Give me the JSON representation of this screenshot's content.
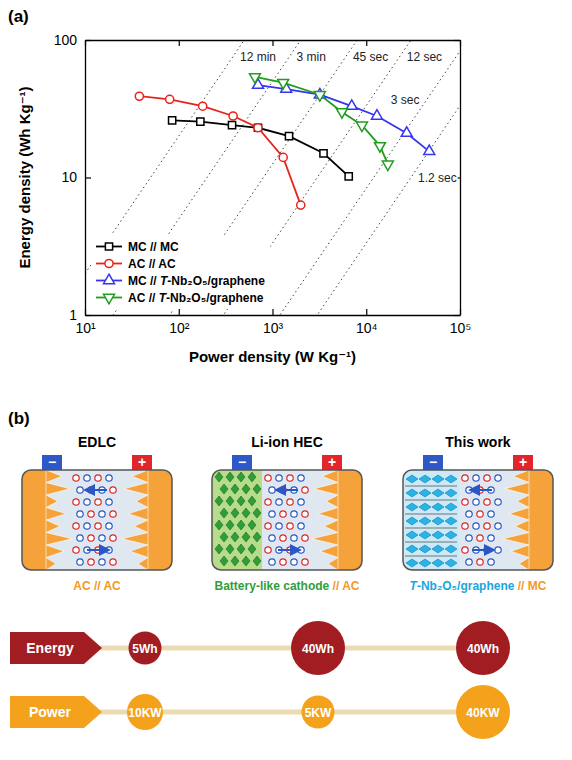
{
  "chart_data": {
    "type": "line",
    "panel_label": "(a)",
    "x_label": "Power density (W Kg⁻¹)",
    "y_label": "Energy density (Wh Kg⁻¹)",
    "log": true,
    "xlim": [
      10,
      100000
    ],
    "xticks": [
      {
        "value": 10,
        "label": "10¹"
      },
      {
        "value": 100,
        "label": "10²"
      },
      {
        "value": 1000,
        "label": "10³"
      },
      {
        "value": 10000,
        "label": "10⁴"
      },
      {
        "value": 100000,
        "label": "10⁵"
      }
    ],
    "ylim": [
      1,
      100
    ],
    "yticks": [
      1,
      10,
      100
    ],
    "grid": false,
    "legend": "lower left",
    "series": [
      {
        "name": "MC // MC",
        "color": "#000000",
        "marker": "square",
        "line_style": "solid",
        "x": [
          85,
          170,
          370,
          700,
          1500,
          3500,
          6500
        ],
        "values": [
          26,
          25.5,
          24,
          23,
          20,
          15,
          10.2
        ]
      },
      {
        "name": "AC // AC",
        "color": "#e8231b",
        "marker": "circle",
        "line_style": "solid",
        "x": [
          38,
          80,
          180,
          380,
          700,
          1300,
          2000
        ],
        "values": [
          39,
          37,
          33,
          28,
          23,
          14,
          6.3
        ]
      },
      {
        "name": "MC // T-Nb₂O₅/graphene",
        "color": "#3535f0",
        "marker": "triangle-up",
        "line_style": "solid",
        "x": [
          700,
          1400,
          3200,
          7000,
          13000,
          27000,
          47000
        ],
        "values": [
          47,
          44,
          40,
          33,
          28,
          21,
          15.5
        ]
      },
      {
        "name": "AC // T-Nb₂O₅/graphene",
        "color": "#1f9e1f",
        "marker": "triangle-down",
        "line_style": "solid",
        "x": [
          650,
          1300,
          3200,
          5500,
          9000,
          14000,
          17000
        ],
        "values": [
          54,
          49,
          40,
          30,
          24,
          17,
          12.5
        ]
      }
    ],
    "time_lines": [
      {
        "value": 0.2,
        "label": "12 min"
      },
      {
        "value": 0.05,
        "label": "3 min"
      },
      {
        "value": 0.0125,
        "label": "45 sec"
      },
      {
        "value": 0.0033333,
        "label": "12 sec"
      },
      {
        "value": 0.00083333,
        "label": "3 sec"
      },
      {
        "value": 0.00033333,
        "label": "1.2 sec"
      }
    ]
  },
  "diagram": {
    "panel_label": "(b)",
    "terminals": [
      "−",
      "+"
    ],
    "cells": [
      {
        "title": "EDLC",
        "type": "symmetric",
        "label_parts": [
          {
            "text": "AC // AC",
            "color": "#f39a1e"
          }
        ]
      },
      {
        "title": "Li-ion HEC",
        "type": "battery-ac",
        "label_parts": [
          {
            "text": "Battery-like cathode",
            "color": "#2f9e3a"
          },
          {
            "text": " // AC",
            "color": "#f39a1e"
          }
        ]
      },
      {
        "title": "This work",
        "type": "nb2o5-mc",
        "label_parts": [
          {
            "text": "T-Nb₂O₅/graphene",
            "color": "#1aa6de"
          },
          {
            "text": " // MC",
            "color": "#f39a1e"
          }
        ]
      }
    ],
    "rows": [
      {
        "label": "Energy",
        "color": "#a11d21",
        "values": [
          {
            "value": 5,
            "label": "5Wh"
          },
          {
            "value": 40,
            "label": "40Wh"
          },
          {
            "value": 40,
            "label": "40Wh"
          }
        ]
      },
      {
        "label": "Power",
        "color": "#f4a21c",
        "values": [
          {
            "value": 10,
            "label": "10KW"
          },
          {
            "value": 5,
            "label": "5KW"
          },
          {
            "value": 40,
            "label": "40KW"
          }
        ]
      }
    ]
  }
}
